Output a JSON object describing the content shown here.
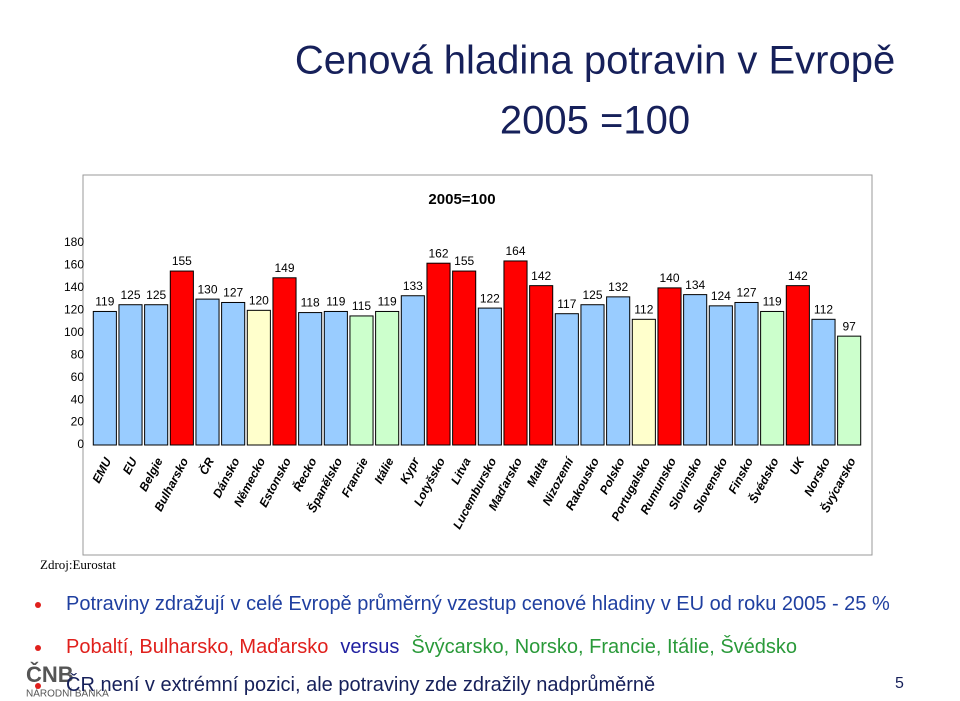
{
  "title_lines": [
    "Cenová hladina potravin v Evropě",
    "2005 =100"
  ],
  "chart_data": {
    "type": "bar",
    "title": "2005=100",
    "categories": [
      "EMU",
      "EU",
      "Belgie",
      "Bulharsko",
      "ČR",
      "Dánsko",
      "Německo",
      "Estonsko",
      "Řecko",
      "Španělsko",
      "Francie",
      "Itálie",
      "Kypr",
      "Lotyšsko",
      "Litva",
      "Lucembursko",
      "Maďarsko",
      "Malta",
      "Nizozemí",
      "Rakousko",
      "Polsko",
      "Portugalsko",
      "Rumunsko",
      "Slovinsko",
      "Slovensko",
      "Finsko",
      "Švédsko",
      "UK",
      "Norsko",
      "Švýcarsko"
    ],
    "values": [
      119,
      125,
      125,
      155,
      130,
      127,
      120,
      149,
      118,
      119,
      115,
      119,
      133,
      162,
      155,
      122,
      164,
      142,
      117,
      125,
      132,
      112,
      140,
      134,
      124,
      127,
      119,
      142,
      112,
      97
    ],
    "colors": [
      "#99ccff",
      "#99ccff",
      "#99ccff",
      "#ff0000",
      "#99ccff",
      "#99ccff",
      "#ffffcc",
      "#ff0000",
      "#99ccff",
      "#99ccff",
      "#ccffcc",
      "#ccffcc",
      "#99ccff",
      "#ff0000",
      "#ff0000",
      "#99ccff",
      "#ff0000",
      "#ff0000",
      "#99ccff",
      "#99ccff",
      "#99ccff",
      "#ffffcc",
      "#ff0000",
      "#99ccff",
      "#99ccff",
      "#99ccff",
      "#ccffcc",
      "#ff0000",
      "#99ccff",
      "#ccffcc"
    ],
    "ylim": [
      0,
      180
    ],
    "yticks": [
      0,
      20,
      40,
      60,
      80,
      100,
      120,
      140,
      160,
      180
    ],
    "grid": false
  },
  "source": "Zdroj:Eurostat",
  "bullets": [
    {
      "parts": [
        {
          "text": "Potraviny zdražují v celé Evropě  průměrný vzestup cenové hladiny v EU od roku 2005 - 25 %",
          "color": "#1f3fa0"
        }
      ]
    },
    {
      "parts": [
        {
          "text": "Pobaltí, Bulharsko, Maďarsko",
          "color": "#e0201c"
        },
        {
          "text": "versus",
          "color": "#1f1fa0"
        },
        {
          "text": "Švýcarsko, Norsko, Francie, Itálie, Švédsko",
          "color": "#2a9a3a"
        }
      ]
    },
    {
      "parts": [
        {
          "text": "ČR není v extrémní pozici, ale potraviny zde zdražily nadprůměrně",
          "color": "#16205a"
        }
      ]
    }
  ],
  "logo": {
    "mark": "ČNB",
    "text": "NÁRODNÍ BANKA"
  },
  "page_number": 5
}
